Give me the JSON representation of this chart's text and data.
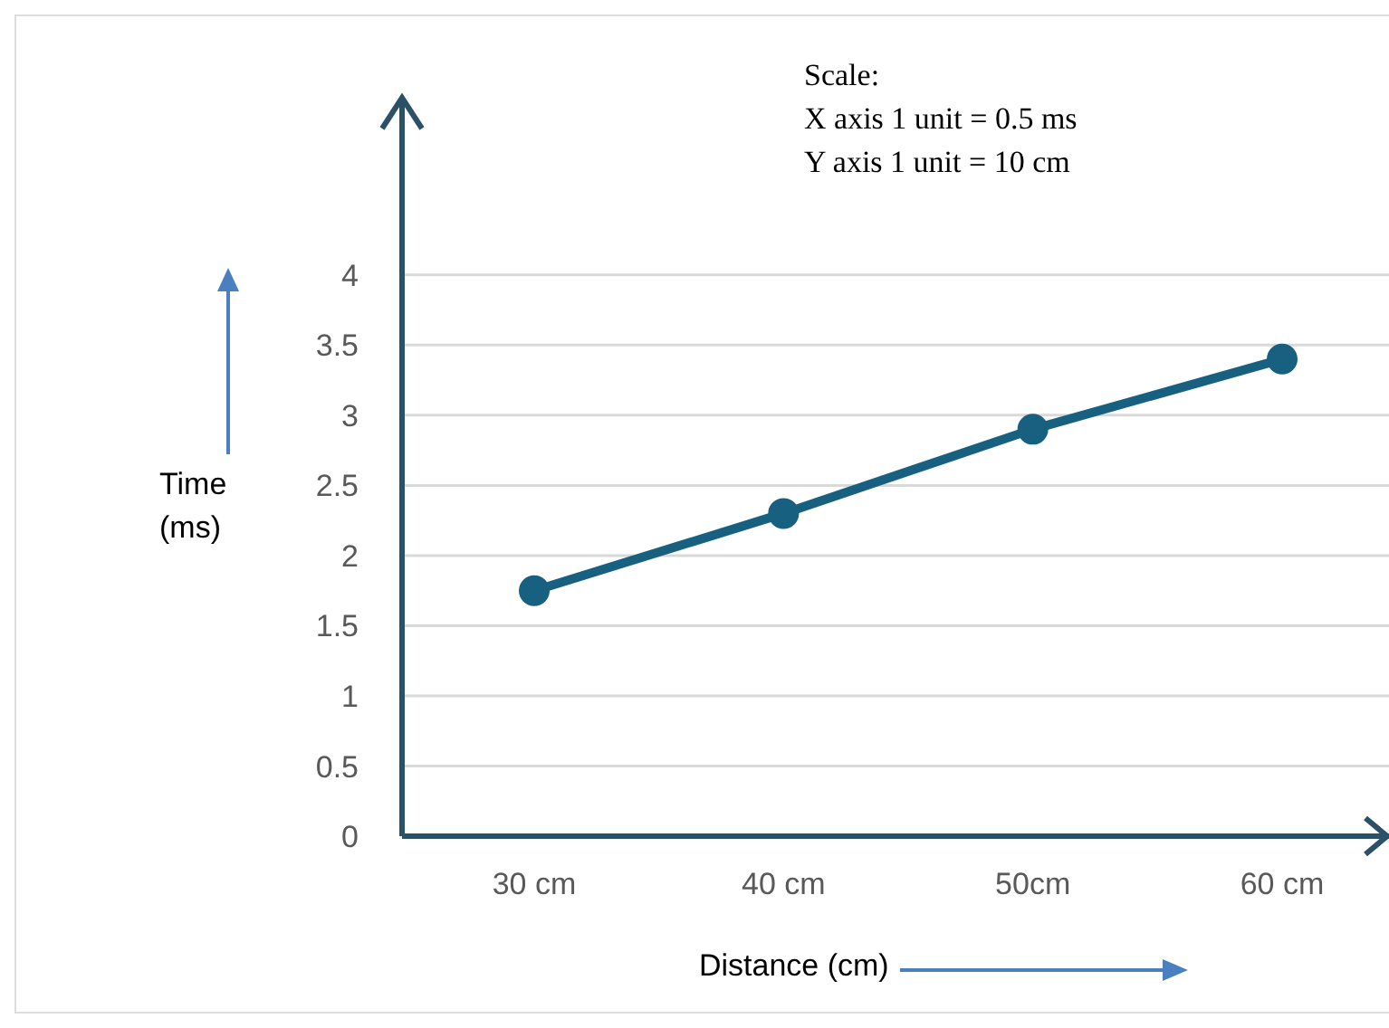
{
  "chart_data": {
    "type": "line",
    "xlabel": "Distance (cm)",
    "ylabel": "Time (ms)",
    "annotations": [
      "Scale:",
      "X axis 1 unit = 0.5 ms",
      "Y axis 1 unit = 10 cm"
    ],
    "categories": [
      "30 cm",
      "40 cm",
      "50cm",
      "60 cm"
    ],
    "series": [
      {
        "color": "#18607f",
        "values": [
          1.75,
          2.3,
          2.9,
          3.4
        ]
      }
    ],
    "ylim": [
      0,
      5.25
    ],
    "yticks": [
      0,
      0.5,
      1,
      1.5,
      2,
      2.5,
      3,
      3.5,
      4
    ],
    "grid": "y",
    "marker": "circle",
    "line_style": "solid",
    "legend": false
  }
}
